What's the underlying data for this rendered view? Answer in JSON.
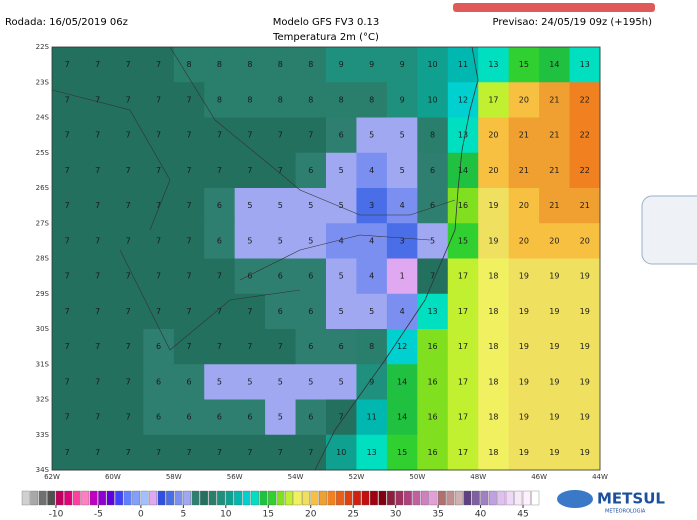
{
  "header": {
    "run": "Rodada: 16/05/2019 06z",
    "model": "Modelo GFS FV3 0.13",
    "variable": "Temperatura 2m (°C)",
    "forecast": "Previsao: 24/05/19 09z (+195h)"
  },
  "map": {
    "lat_labels": [
      "22S",
      "23S",
      "24S",
      "25S",
      "26S",
      "27S",
      "28S",
      "29S",
      "30S",
      "31S",
      "32S",
      "33S",
      "34S"
    ],
    "lon_labels": [
      "62W",
      "60W",
      "58W",
      "56W",
      "54W",
      "52W",
      "50W",
      "48W",
      "46W",
      "44W"
    ],
    "temperatures": [
      [
        7,
        7,
        7,
        7,
        8,
        8,
        8,
        8,
        8,
        9,
        9,
        9,
        10,
        11,
        13,
        15,
        14,
        13
      ],
      [
        7,
        7,
        7,
        7,
        7,
        8,
        8,
        8,
        8,
        8,
        8,
        9,
        10,
        12,
        17,
        20,
        21,
        22
      ],
      [
        7,
        7,
        7,
        7,
        7,
        7,
        7,
        7,
        7,
        6,
        5,
        5,
        8,
        13,
        20,
        21,
        21,
        22
      ],
      [
        7,
        7,
        7,
        7,
        7,
        7,
        7,
        7,
        6,
        5,
        4,
        5,
        6,
        14,
        20,
        21,
        21,
        22
      ],
      [
        7,
        7,
        7,
        7,
        7,
        6,
        5,
        5,
        5,
        5,
        3,
        4,
        6,
        16,
        19,
        20,
        21,
        21
      ],
      [
        7,
        7,
        7,
        7,
        7,
        6,
        5,
        5,
        5,
        4,
        4,
        3,
        5,
        15,
        19,
        20,
        20,
        20
      ],
      [
        7,
        7,
        7,
        7,
        7,
        7,
        6,
        6,
        6,
        5,
        4,
        1,
        7,
        17,
        18,
        19,
        19,
        19
      ],
      [
        7,
        7,
        7,
        7,
        7,
        7,
        7,
        6,
        6,
        5,
        5,
        4,
        13,
        17,
        18,
        19,
        19,
        19
      ],
      [
        7,
        7,
        7,
        6,
        7,
        7,
        7,
        7,
        6,
        6,
        8,
        12,
        16,
        17,
        18,
        19,
        19,
        19
      ],
      [
        7,
        7,
        7,
        6,
        6,
        5,
        5,
        5,
        5,
        5,
        9,
        14,
        16,
        17,
        18,
        19,
        19,
        19
      ],
      [
        7,
        7,
        7,
        6,
        6,
        6,
        6,
        5,
        6,
        7,
        11,
        14,
        16,
        17,
        18,
        19,
        19,
        19
      ],
      [
        7,
        7,
        7,
        7,
        7,
        7,
        7,
        7,
        7,
        10,
        13,
        15,
        16,
        17,
        18,
        19,
        19,
        19
      ]
    ]
  },
  "colorbar": {
    "lim": [
      -14,
      47
    ],
    "ticks": [
      -10,
      -5,
      0,
      5,
      10,
      15,
      20,
      25,
      30,
      35,
      40,
      45
    ],
    "colors": [
      "#d0d0d0",
      "#a8a8a8",
      "#707070",
      "#505050",
      "#c00060",
      "#e0007a",
      "#ff40a0",
      "#ff80c0",
      "#c000c0",
      "#9000d0",
      "#6000e0",
      "#4040ff",
      "#6080ff",
      "#80a0ff",
      "#a0c0ff",
      "#e0a8f0",
      "#3050e0",
      "#4a6de8",
      "#7a8ff0",
      "#9fa8f0",
      "#2f7f70",
      "#23705f",
      "#2a7e6c",
      "#20907e",
      "#10a090",
      "#00b8b0",
      "#00d0d0",
      "#00e0c0",
      "#20c040",
      "#30d030",
      "#80e020",
      "#c0f030",
      "#f0f060",
      "#f0e060",
      "#f8c040",
      "#f0a030",
      "#f08020",
      "#e86018",
      "#e04010",
      "#d02010",
      "#c01010",
      "#a00010",
      "#800010",
      "#8a2040",
      "#a03060",
      "#b04080",
      "#c060a0",
      "#d080c0",
      "#e0a0d8",
      "#b07070",
      "#c09090",
      "#d0b0b0",
      "#604080",
      "#8060a0",
      "#a080c0",
      "#c0a0e0",
      "#e0c0f0",
      "#f0d8f8",
      "#f8e8f8",
      "#fff0ff",
      "#ffffff"
    ]
  },
  "logo": {
    "name": "METSUL",
    "tagline": "METEOROLOGIA"
  }
}
